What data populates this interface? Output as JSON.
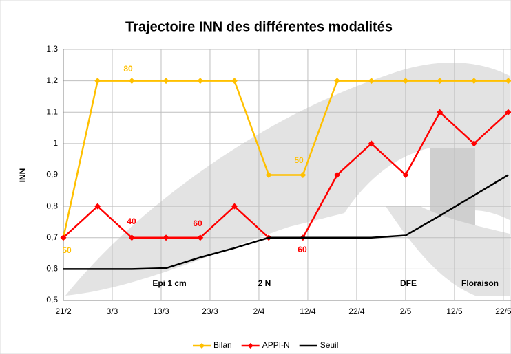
{
  "chart_data": {
    "type": "line",
    "title": "Trajectoire INN des différentes modalités",
    "y_label": "INN",
    "x": [
      0,
      7,
      14,
      21,
      28,
      35,
      42,
      49,
      56,
      63,
      70,
      77,
      84,
      91
    ],
    "xlim": [
      0,
      91
    ],
    "xticks": [
      {
        "value": 0,
        "label": "21/2"
      },
      {
        "value": 10,
        "label": "3/3"
      },
      {
        "value": 20,
        "label": "13/3"
      },
      {
        "value": 30,
        "label": "23/3"
      },
      {
        "value": 40,
        "label": "2/4"
      },
      {
        "value": 50,
        "label": "12/4"
      },
      {
        "value": 60,
        "label": "22/4"
      },
      {
        "value": 70,
        "label": "2/5"
      },
      {
        "value": 80,
        "label": "12/5"
      },
      {
        "value": 90,
        "label": "22/5"
      }
    ],
    "ylim": [
      0.5,
      1.3
    ],
    "yticks": [
      {
        "value": 0.5,
        "label": "0,5"
      },
      {
        "value": 0.6,
        "label": "0,6"
      },
      {
        "value": 0.7,
        "label": "0,7"
      },
      {
        "value": 0.8,
        "label": "0,8"
      },
      {
        "value": 0.9,
        "label": "0,9"
      },
      1,
      {
        "value": 1.1,
        "label": "1,1"
      },
      {
        "value": 1.2,
        "label": "1,2"
      },
      {
        "value": 1.3,
        "label": "1,3"
      }
    ],
    "grid": true,
    "legend": "bottom",
    "series": [
      {
        "name": "Bilan",
        "color": "#ffc000",
        "marker": "diamond",
        "values": [
          0.7,
          1.2,
          1.2,
          1.2,
          1.2,
          1.2,
          0.9,
          0.9,
          1.2,
          1.2,
          1.2,
          1.2,
          1.2,
          1.2
        ]
      },
      {
        "name": "APPI-N",
        "color": "#ff0000",
        "marker": "diamond",
        "values": [
          0.7,
          0.8,
          0.7,
          0.7,
          0.7,
          0.8,
          0.7,
          0.7,
          0.9,
          1.0,
          0.9,
          1.1,
          1.0,
          1.1
        ]
      },
      {
        "name": "Seuil",
        "color": "#000000",
        "marker": "none",
        "values": [
          0.6,
          0.6,
          0.6,
          0.603,
          0.637,
          0.667,
          0.7,
          0.7,
          0.7,
          0.7,
          0.707,
          0.77,
          0.835,
          0.9
        ]
      }
    ],
    "annotations": [
      {
        "text": "50",
        "color": "#ffc000"
      },
      {
        "text": "80",
        "color": "#ffc000"
      },
      {
        "text": "50",
        "color": "#ffc000"
      },
      {
        "text": "40",
        "color": "#ff0000"
      },
      {
        "text": "60",
        "color": "#ff0000"
      },
      {
        "text": "60",
        "color": "#ff0000"
      },
      {
        "text": "Epi 1 cm",
        "color": "#000000"
      },
      {
        "text": "2 N",
        "color": "#000000"
      },
      {
        "text": "DFE",
        "color": "#000000"
      },
      {
        "text": "Floraison",
        "color": "#000000"
      }
    ]
  }
}
